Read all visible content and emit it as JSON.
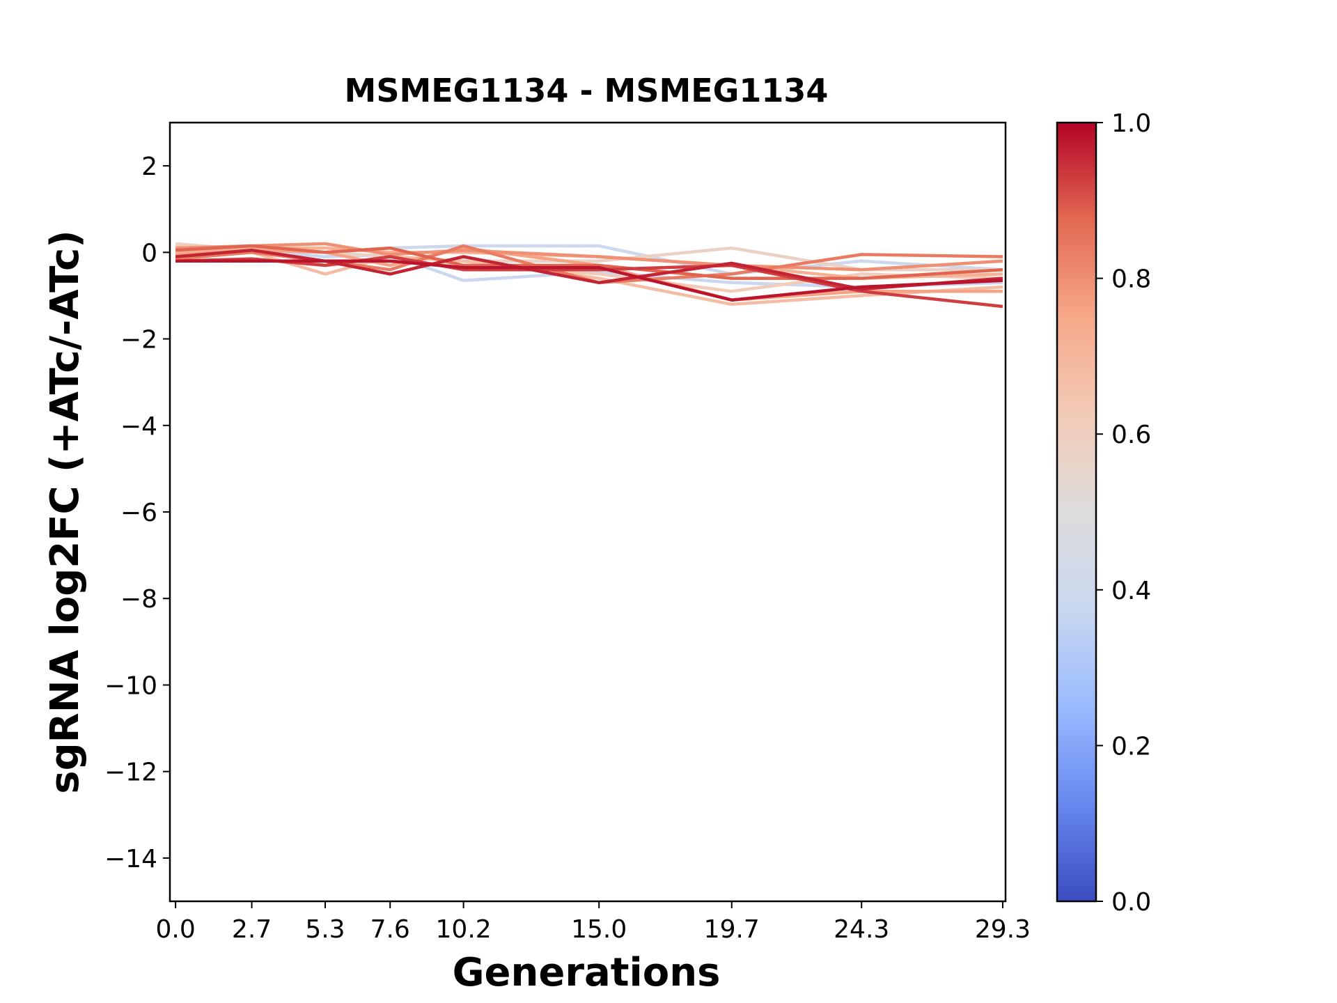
{
  "chart_data": {
    "type": "line",
    "title": "MSMEG1134 - MSMEG1134",
    "xlabel": "Generations",
    "ylabel": "sgRNA log2FC (+ATc/-ATc)",
    "x": [
      0.0,
      2.7,
      5.3,
      7.6,
      10.2,
      15.0,
      19.7,
      24.3,
      29.3
    ],
    "x_tick_labels": [
      "0.0",
      "2.7",
      "5.3",
      "7.6",
      "10.2",
      "15.0",
      "19.7",
      "24.3",
      "29.3"
    ],
    "xlim": [
      -0.2,
      29.4
    ],
    "ylim": [
      -15,
      3
    ],
    "y_ticks": [
      2,
      0,
      -2,
      -4,
      -6,
      -8,
      -10,
      -12,
      -14
    ],
    "y_tick_labels": [
      "2",
      "0",
      "−2",
      "−4",
      "−6",
      "−8",
      "−10",
      "−12",
      "−14"
    ],
    "grid": false,
    "legend": "none",
    "series": [
      {
        "color_value": 0.38,
        "values": [
          0.0,
          0.05,
          -0.1,
          -0.05,
          -0.65,
          -0.45,
          -0.7,
          -0.8,
          -0.7
        ]
      },
      {
        "color_value": 0.4,
        "values": [
          0.1,
          0.1,
          0.0,
          0.1,
          0.15,
          0.15,
          -0.5,
          -0.2,
          -0.4
        ]
      },
      {
        "color_value": 0.58,
        "values": [
          0.2,
          0.05,
          0.0,
          -0.1,
          -0.2,
          -0.2,
          0.1,
          -0.4,
          -0.4
        ]
      },
      {
        "color_value": 0.62,
        "values": [
          0.15,
          0.1,
          -0.3,
          -0.2,
          -0.3,
          -0.5,
          -0.9,
          -0.5,
          -0.6
        ]
      },
      {
        "color_value": 0.68,
        "values": [
          -0.1,
          0.0,
          -0.5,
          -0.1,
          -0.2,
          -0.6,
          -1.2,
          -1.0,
          -0.8
        ]
      },
      {
        "color_value": 0.72,
        "values": [
          0.0,
          0.1,
          0.1,
          0.0,
          0.0,
          -0.1,
          -0.3,
          -0.6,
          -0.5
        ]
      },
      {
        "color_value": 0.76,
        "values": [
          -0.05,
          0.05,
          0.0,
          -0.3,
          0.1,
          -0.3,
          -1.1,
          -0.9,
          -0.9
        ]
      },
      {
        "color_value": 0.8,
        "values": [
          0.1,
          0.15,
          0.2,
          -0.05,
          0.05,
          -0.1,
          -0.3,
          -0.4,
          -0.2
        ]
      },
      {
        "color_value": 0.84,
        "values": [
          -0.15,
          0.0,
          -0.2,
          -0.4,
          0.15,
          -0.7,
          -0.5,
          -0.05,
          -0.1
        ]
      },
      {
        "color_value": 0.88,
        "values": [
          0.05,
          0.15,
          0.0,
          0.1,
          -0.3,
          -0.3,
          -0.6,
          -0.6,
          -0.4
        ]
      },
      {
        "color_value": 0.93,
        "values": [
          -0.2,
          -0.15,
          -0.3,
          -0.1,
          -0.4,
          -0.4,
          -0.3,
          -0.9,
          -1.25
        ]
      },
      {
        "color_value": 0.96,
        "values": [
          -0.1,
          0.05,
          -0.2,
          -0.5,
          -0.1,
          -0.7,
          -0.25,
          -0.85,
          -0.6
        ]
      },
      {
        "color_value": 0.98,
        "values": [
          -0.2,
          -0.2,
          -0.2,
          -0.2,
          -0.35,
          -0.35,
          -1.1,
          -0.8,
          -0.65
        ]
      }
    ],
    "colorbar": {
      "colormap": "coolwarm",
      "range": [
        0,
        1
      ],
      "ticks": [
        0.0,
        0.2,
        0.4,
        0.6,
        0.8,
        1.0
      ],
      "tick_labels": [
        "0.0",
        "0.2",
        "0.4",
        "0.6",
        "0.8",
        "1.0"
      ],
      "color_stops": [
        "#3b4cc0",
        "#6788ee",
        "#9abbff",
        "#c9d7f0",
        "#dddcdc",
        "#f2cbb7",
        "#f7a889",
        "#e26952",
        "#b40426"
      ]
    }
  }
}
